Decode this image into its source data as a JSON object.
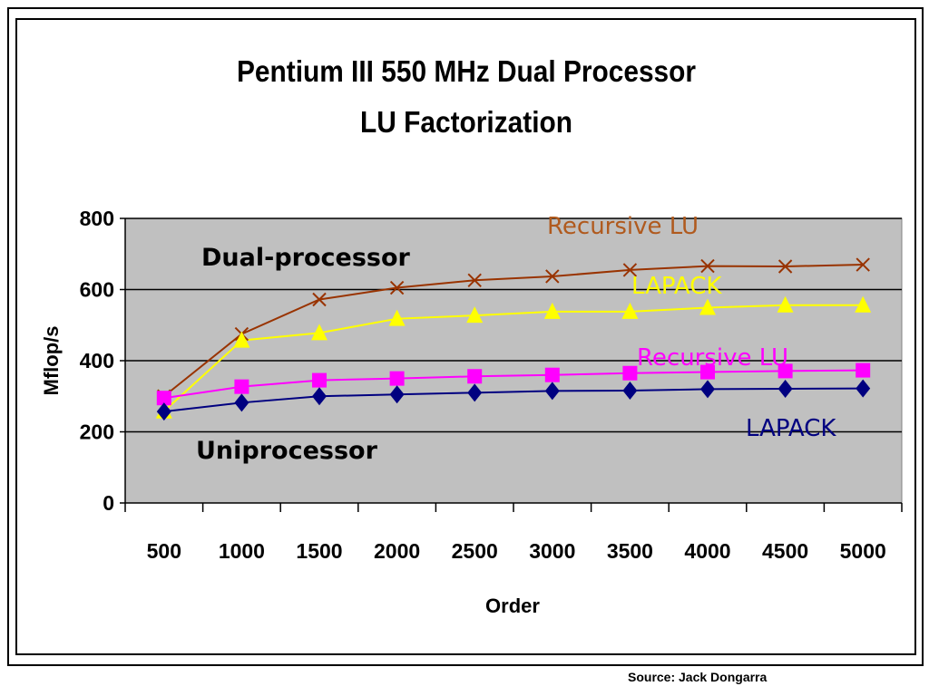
{
  "chart_data": {
    "type": "line",
    "title_lines": [
      "Pentium III 550 MHz Dual Processor",
      "LU Factorization"
    ],
    "xlabel": "Order",
    "ylabel": "Mflop/s",
    "categories": [
      "500",
      "1000",
      "1500",
      "2000",
      "2500",
      "3000",
      "3500",
      "4000",
      "4500",
      "5000"
    ],
    "ylim": [
      0,
      800
    ],
    "yticks": [
      "0",
      "200",
      "400",
      "600",
      "800"
    ],
    "grid": true,
    "plot_background": "#c0c0c0",
    "group_labels": [
      "Dual-processor",
      "Uniprocessor"
    ],
    "series": [
      {
        "name": "Recursive LU",
        "group": "Dual-processor",
        "color": "#993300",
        "marker": "x",
        "values": [
          300,
          475,
          572,
          605,
          626,
          637,
          655,
          666,
          665,
          670
        ]
      },
      {
        "name": "LAPACK",
        "group": "Dual-processor",
        "color": "#ffff00",
        "marker": "triangle",
        "values": [
          258,
          457,
          478,
          518,
          527,
          538,
          538,
          549,
          556,
          556
        ]
      },
      {
        "name": "Recursive LU",
        "group": "Uniprocessor",
        "color": "#ff00ff",
        "marker": "square",
        "values": [
          295,
          327,
          345,
          350,
          356,
          360,
          365,
          368,
          371,
          373
        ]
      },
      {
        "name": "LAPACK",
        "group": "Uniprocessor",
        "color": "#000080",
        "marker": "diamond",
        "values": [
          257,
          282,
          300,
          305,
          310,
          315,
          316,
          320,
          321,
          322
        ]
      }
    ]
  },
  "source": "Source: Jack Dongarra"
}
